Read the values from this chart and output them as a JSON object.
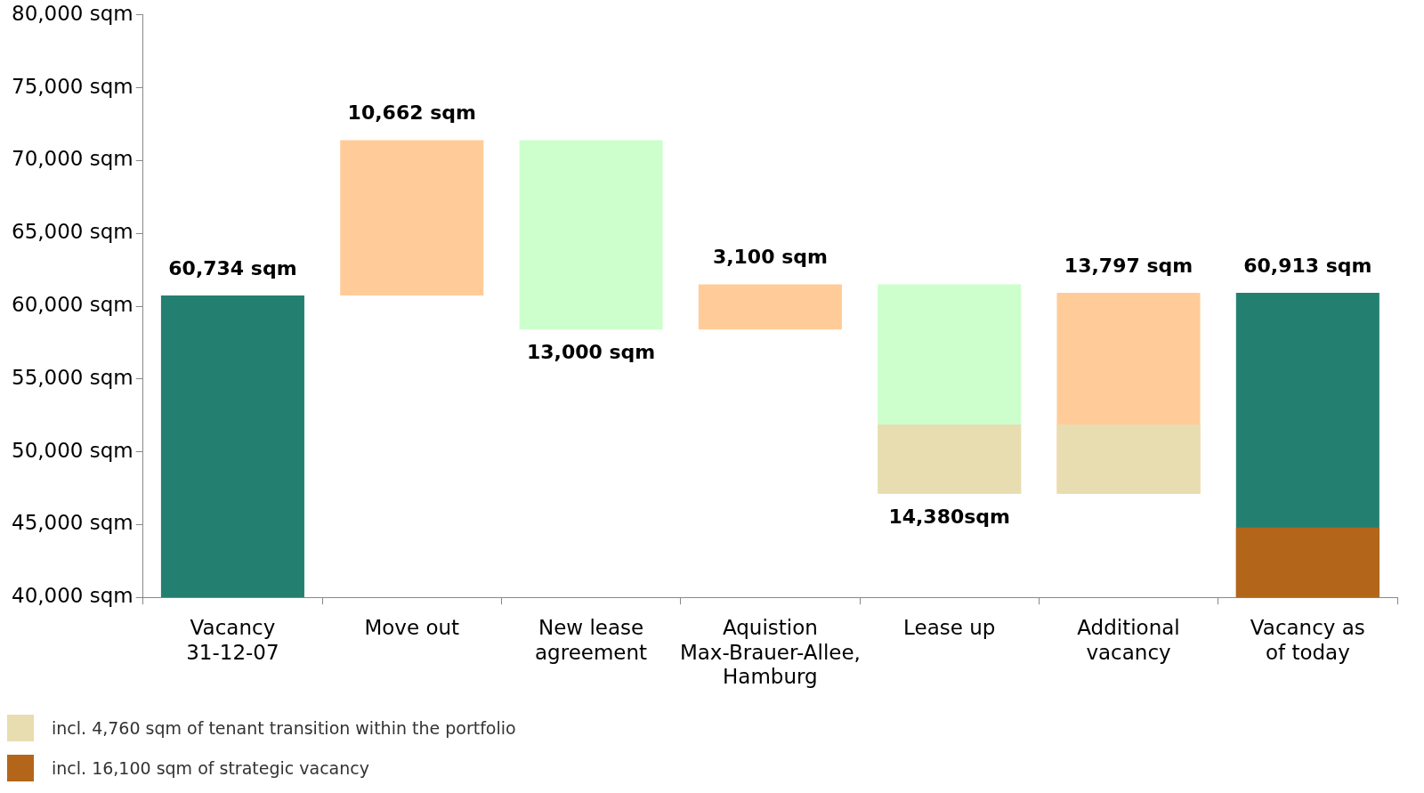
{
  "chart_data": {
    "type": "bar",
    "categories": [
      "Vacancy 31-12-07",
      "Move out",
      "New lease agreement",
      "Aquistion Max-Brauer-Allee, Hamburg",
      "Lease up",
      "Additional vacancy",
      "Vacancy as of today"
    ],
    "ylim": [
      40000,
      80000
    ],
    "yticks": [
      {
        "value": 40000,
        "label": "40,000 sqm"
      },
      {
        "value": 45000,
        "label": "45,000 sqm"
      },
      {
        "value": 50000,
        "label": "50,000 sqm"
      },
      {
        "value": 55000,
        "label": "55,000 sqm"
      },
      {
        "value": 60000,
        "label": "60,000 sqm"
      },
      {
        "value": 65000,
        "label": "65,000 sqm"
      },
      {
        "value": 70000,
        "label": "70,000 sqm"
      },
      {
        "value": 75000,
        "label": "75,000 sqm"
      },
      {
        "value": 80000,
        "label": "80,000 sqm"
      }
    ],
    "grid": false,
    "legend": "bottom left",
    "series": [
      {
        "colors": [
          "#238070",
          "#ffcc99",
          "#ccffcc",
          "#ffcc99",
          "#ccffcc",
          "#ffcc99",
          "#238070"
        ],
        "base": [
          null,
          60734,
          71396,
          58396,
          61496,
          47116,
          null
        ],
        "values": [
          60734,
          10662,
          -13000,
          3100,
          -14380,
          13797,
          60913
        ],
        "value_labels": [
          "60,734 sqm",
          "10,662 sqm",
          "13,000 sqm",
          "3,100 sqm",
          "14,380sqm",
          "13,797 sqm",
          "60,913 sqm"
        ]
      },
      {
        "name": "incl. 4,760 sqm of tenant transition within the portfolio",
        "color": "#e8ddb0",
        "base": [
          null,
          null,
          null,
          null,
          47116,
          47116,
          null
        ],
        "values": [
          null,
          null,
          null,
          null,
          4760,
          4760,
          null
        ]
      },
      {
        "name": "incl. 16,100 sqm of strategic vacancy",
        "color": "#b3661a",
        "base": [
          null,
          null,
          null,
          null,
          null,
          null,
          40000
        ],
        "values": [
          null,
          null,
          null,
          null,
          null,
          null,
          4800
        ]
      }
    ]
  }
}
